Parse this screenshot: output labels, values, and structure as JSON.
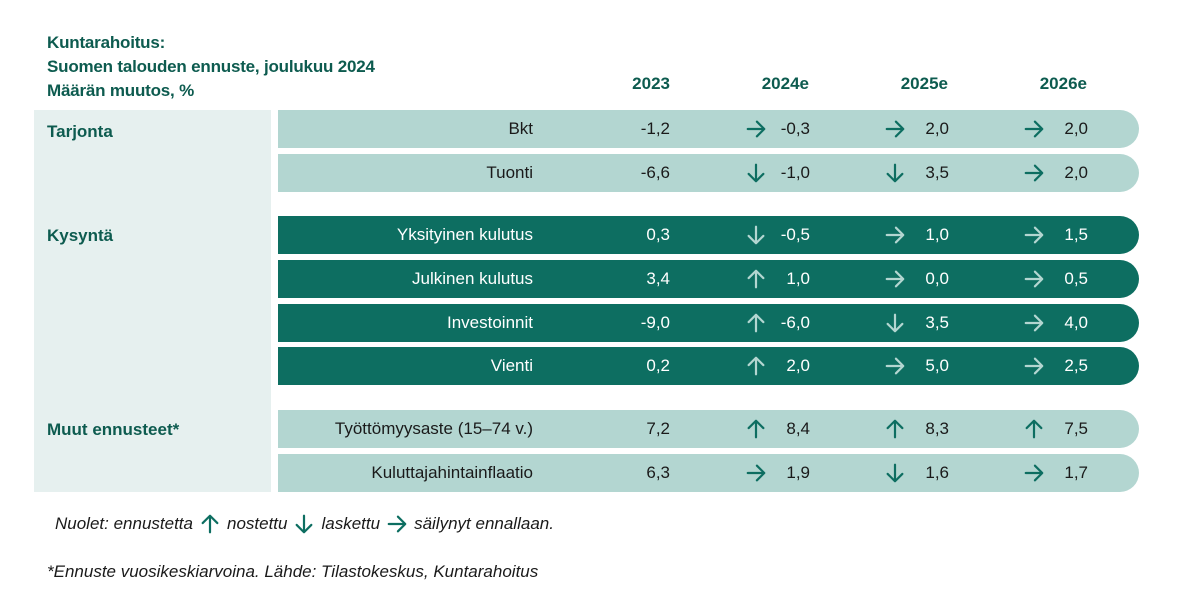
{
  "title": {
    "line1": "Kuntarahoitus:",
    "line2": "Suomen talouden ennuste, joulukuu 2024",
    "line3": "Määrän muutos, %"
  },
  "years": [
    "2023",
    "2024e",
    "2025e",
    "2026e"
  ],
  "colors": {
    "dark_green": "#0d6e61",
    "light_green": "#b3d6d1",
    "panel": "#e6f0ef",
    "title": "#0d5b4f"
  },
  "groups": [
    {
      "name": "Tarjonta",
      "style": "light",
      "rows": [
        {
          "label": "Bkt",
          "v2023": "-1,2",
          "a2024": "right",
          "v2024": "-0,3",
          "a2025": "right",
          "v2025": "2,0",
          "a2026": "right",
          "v2026": "2,0"
        },
        {
          "label": "Tuonti",
          "v2023": "-6,6",
          "a2024": "down",
          "v2024": "-1,0",
          "a2025": "down",
          "v2025": "3,5",
          "a2026": "right",
          "v2026": "2,0"
        }
      ]
    },
    {
      "name": "Kysyntä",
      "style": "dark",
      "rows": [
        {
          "label": "Yksityinen kulutus",
          "v2023": "0,3",
          "a2024": "down",
          "v2024": "-0,5",
          "a2025": "right",
          "v2025": "1,0",
          "a2026": "right",
          "v2026": "1,5"
        },
        {
          "label": "Julkinen kulutus",
          "v2023": "3,4",
          "a2024": "up",
          "v2024": "1,0",
          "a2025": "right",
          "v2025": "0,0",
          "a2026": "right",
          "v2026": "0,5"
        },
        {
          "label": "Investoinnit",
          "v2023": "-9,0",
          "a2024": "up",
          "v2024": "-6,0",
          "a2025": "down",
          "v2025": "3,5",
          "a2026": "right",
          "v2026": "4,0"
        },
        {
          "label": "Vienti",
          "v2023": "0,2",
          "a2024": "up",
          "v2024": "2,0",
          "a2025": "right",
          "v2025": "5,0",
          "a2026": "right",
          "v2026": "2,5"
        }
      ]
    },
    {
      "name": "Muut ennusteet*",
      "style": "light",
      "rows": [
        {
          "label": "Työttömyysaste (15–74 v.)",
          "v2023": "7,2",
          "a2024": "up",
          "v2024": "8,4",
          "a2025": "up",
          "v2025": "8,3",
          "a2026": "up",
          "v2026": "7,5"
        },
        {
          "label": "Kuluttajahintainflaatio",
          "v2023": "6,3",
          "a2024": "right",
          "v2024": "1,9",
          "a2025": "down",
          "v2025": "1,6",
          "a2026": "right",
          "v2026": "1,7"
        }
      ]
    }
  ],
  "legend": {
    "prefix": "Nuolet: ennustetta",
    "up_label": "nostettu",
    "down_label": "laskettu",
    "right_label": "säilynyt ennallaan."
  },
  "footnote": "*Ennuste vuosikeskiarvoina.  Lähde: Tilastokeskus, Kuntarahoitus"
}
